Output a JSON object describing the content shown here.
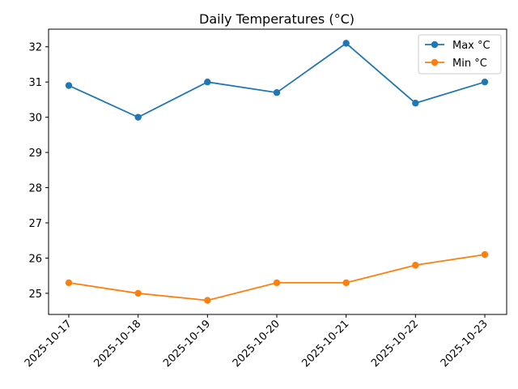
{
  "chart_data": {
    "type": "line",
    "title": "Daily Temperatures (°C)",
    "xlabel": "",
    "ylabel": "",
    "categories": [
      "2025-10-17",
      "2025-10-18",
      "2025-10-19",
      "2025-10-20",
      "2025-10-21",
      "2025-10-22",
      "2025-10-23"
    ],
    "series": [
      {
        "name": "Max °C",
        "values": [
          30.9,
          30.0,
          31.0,
          30.7,
          32.1,
          30.4,
          31.0
        ],
        "color": "#1f77b4"
      },
      {
        "name": "Min °C",
        "values": [
          25.3,
          25.0,
          24.8,
          25.3,
          25.3,
          25.8,
          26.1
        ],
        "color": "#ff7f0e"
      }
    ],
    "ylim": [
      24.4,
      32.5
    ],
    "yticks": [
      "25",
      "26",
      "27",
      "28",
      "29",
      "30",
      "31",
      "32"
    ],
    "grid": false,
    "legend_position": "top-right"
  }
}
